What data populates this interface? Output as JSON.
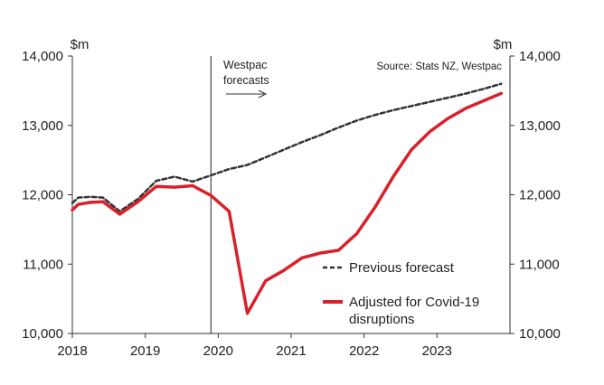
{
  "chart_data": {
    "type": "line",
    "title": "",
    "left_unit": "$m",
    "right_unit": "$m",
    "source": "Source: Stats NZ, Westpac",
    "annotation": [
      "Westpac",
      "forecasts"
    ],
    "forecast_start_x": 2019.9,
    "xlim": [
      2018.0,
      2024.0
    ],
    "ylim": [
      10000,
      14000
    ],
    "x_ticks": [
      2018,
      2019,
      2020,
      2021,
      2022,
      2023
    ],
    "x_tick_labels": [
      "2018",
      "2019",
      "2020",
      "2021",
      "2022",
      "2023"
    ],
    "y_ticks": [
      10000,
      11000,
      12000,
      13000,
      14000
    ],
    "y_tick_labels": [
      "10,000",
      "11,000",
      "12,000",
      "13,000",
      "14,000"
    ],
    "series": [
      {
        "name": "Previous forecast",
        "style": "dashed",
        "color": "#333333",
        "x": [
          2018.0,
          2018.08,
          2018.25,
          2018.42,
          2018.65,
          2018.9,
          2019.15,
          2019.4,
          2019.65,
          2019.9,
          2020.15,
          2020.4,
          2020.65,
          2020.9,
          2021.15,
          2021.4,
          2021.65,
          2021.9,
          2022.15,
          2022.4,
          2022.65,
          2022.9,
          2023.15,
          2023.4,
          2023.65,
          2023.88
        ],
        "values": [
          11880,
          11960,
          11970,
          11960,
          11760,
          11940,
          12200,
          12260,
          12190,
          12280,
          12370,
          12430,
          12540,
          12650,
          12760,
          12860,
          12970,
          13070,
          13150,
          13220,
          13280,
          13340,
          13400,
          13460,
          13530,
          13600
        ]
      },
      {
        "name": "Adjusted for Covid-19 disruptions",
        "style": "solid",
        "color": "#d7222b",
        "x": [
          2018.0,
          2018.08,
          2018.25,
          2018.42,
          2018.65,
          2018.9,
          2019.15,
          2019.4,
          2019.65,
          2019.9,
          2020.15,
          2020.4,
          2020.65,
          2020.9,
          2021.15,
          2021.4,
          2021.65,
          2021.9,
          2022.15,
          2022.4,
          2022.65,
          2022.9,
          2023.15,
          2023.4,
          2023.65,
          2023.88
        ],
        "values": [
          11780,
          11860,
          11890,
          11900,
          11720,
          11900,
          12120,
          12110,
          12130,
          11990,
          11760,
          10290,
          10760,
          10910,
          11090,
          11160,
          11200,
          11440,
          11820,
          12260,
          12650,
          12910,
          13100,
          13250,
          13360,
          13460
        ]
      }
    ]
  }
}
